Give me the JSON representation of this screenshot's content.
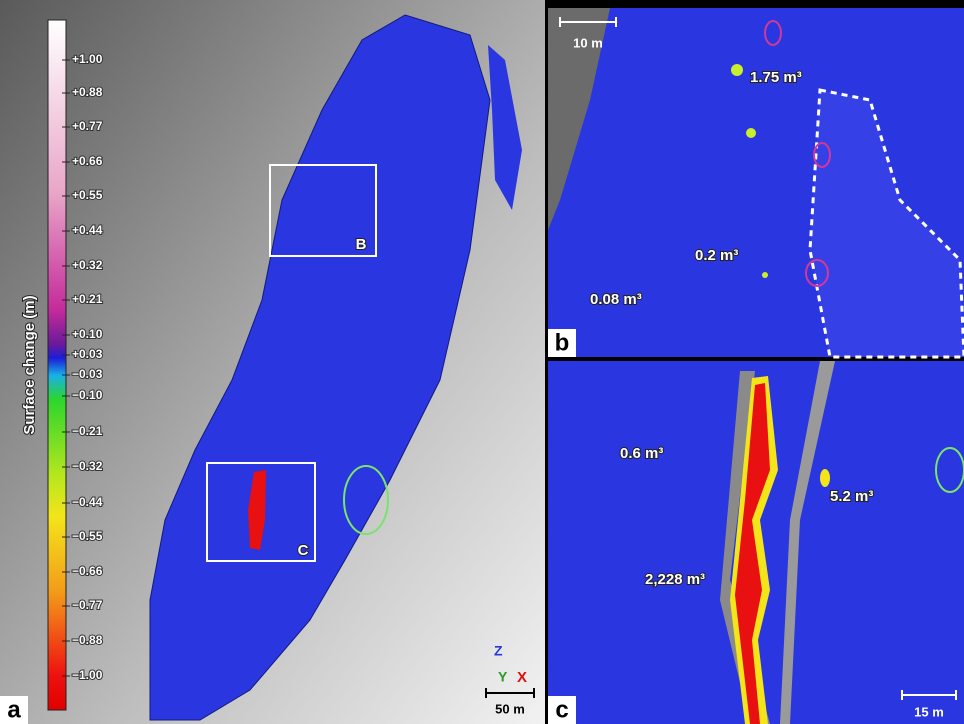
{
  "panel_a": {
    "label": "a",
    "colorbar": {
      "title": "Surface change (m)",
      "ticks": [
        "+1.00",
        "+0.88",
        "+0.77",
        "+0.66",
        "+0.55",
        "+0.44",
        "+0.32",
        "+0.21",
        "+0.10",
        "+0.03",
        "−0.03",
        "−0.10",
        "−0.21",
        "−0.32",
        "−0.44",
        "−0.55",
        "−0.66",
        "−0.77",
        "−0.88",
        "−1.00"
      ]
    },
    "boxes": [
      "B",
      "C"
    ],
    "scale_bar": "50 m",
    "axes": [
      "Z",
      "Y",
      "X"
    ]
  },
  "panel_b": {
    "label": "b",
    "scale_bar": "10 m",
    "volumes": [
      "1.75 m³",
      "0.2 m³",
      "0.08 m³"
    ]
  },
  "panel_c": {
    "label": "c",
    "scale_bar": "15 m",
    "volumes": [
      "0.6 m³",
      "5.2 m³",
      "2,228 m³"
    ]
  }
}
